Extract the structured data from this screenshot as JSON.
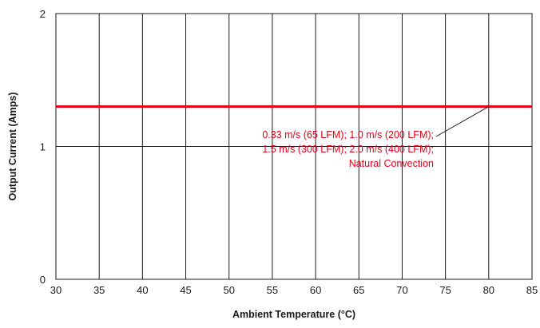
{
  "chart_data": {
    "type": "line",
    "title": "",
    "xlabel": "Ambient Temperature (°C)",
    "ylabel": "Output Current (Amps)",
    "xlim": [
      30,
      85
    ],
    "ylim": [
      0,
      2
    ],
    "x_ticks": [
      30,
      35,
      40,
      45,
      50,
      55,
      60,
      65,
      70,
      75,
      80,
      85
    ],
    "y_ticks": [
      0,
      1,
      2
    ],
    "grid": true,
    "series": [
      {
        "color": "#e2001a",
        "x": [
          30,
          85
        ],
        "y": [
          1.3,
          1.3
        ]
      }
    ],
    "annotation": {
      "lines": [
        "0.33 m/s (65 LFM); 1.0 m/s (200 LFM);",
        "1.5 m/s (300 LFM); 2.0 m/s (400 LFM);",
        "Natural Convection"
      ],
      "color": "#e2001a",
      "points_to": {
        "x": 80,
        "y": 1.3
      }
    }
  }
}
